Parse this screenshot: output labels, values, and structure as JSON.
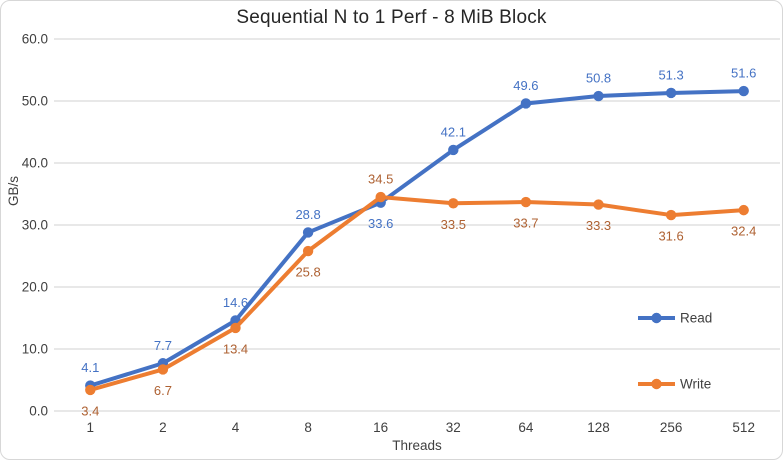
{
  "chart_data": {
    "type": "line",
    "title": "Sequential N to 1 Perf - 8 MiB Block",
    "xlabel": "Threads",
    "ylabel": "GB/s",
    "categories": [
      "1",
      "2",
      "4",
      "8",
      "16",
      "32",
      "64",
      "128",
      "256",
      "512"
    ],
    "series": [
      {
        "name": "Read",
        "values": [
          4.1,
          7.7,
          14.6,
          28.8,
          33.6,
          42.1,
          49.6,
          50.8,
          51.3,
          51.6
        ],
        "color": "#4472C4",
        "label_color": "#4472C4"
      },
      {
        "name": "Write",
        "values": [
          3.4,
          6.7,
          13.4,
          25.8,
          34.5,
          33.5,
          33.7,
          33.3,
          31.6,
          32.4
        ],
        "color": "#ED7D31",
        "label_color": "#AE6132"
      }
    ],
    "ylim": [
      0,
      60
    ],
    "ytick_step": 10,
    "ytick_decimals": 1,
    "grid": true,
    "gridline_color": "#D9D9D9",
    "axis_text_color": "#404040",
    "legend_position": "inside-right",
    "legend_labels": [
      "Read",
      "Write"
    ]
  }
}
